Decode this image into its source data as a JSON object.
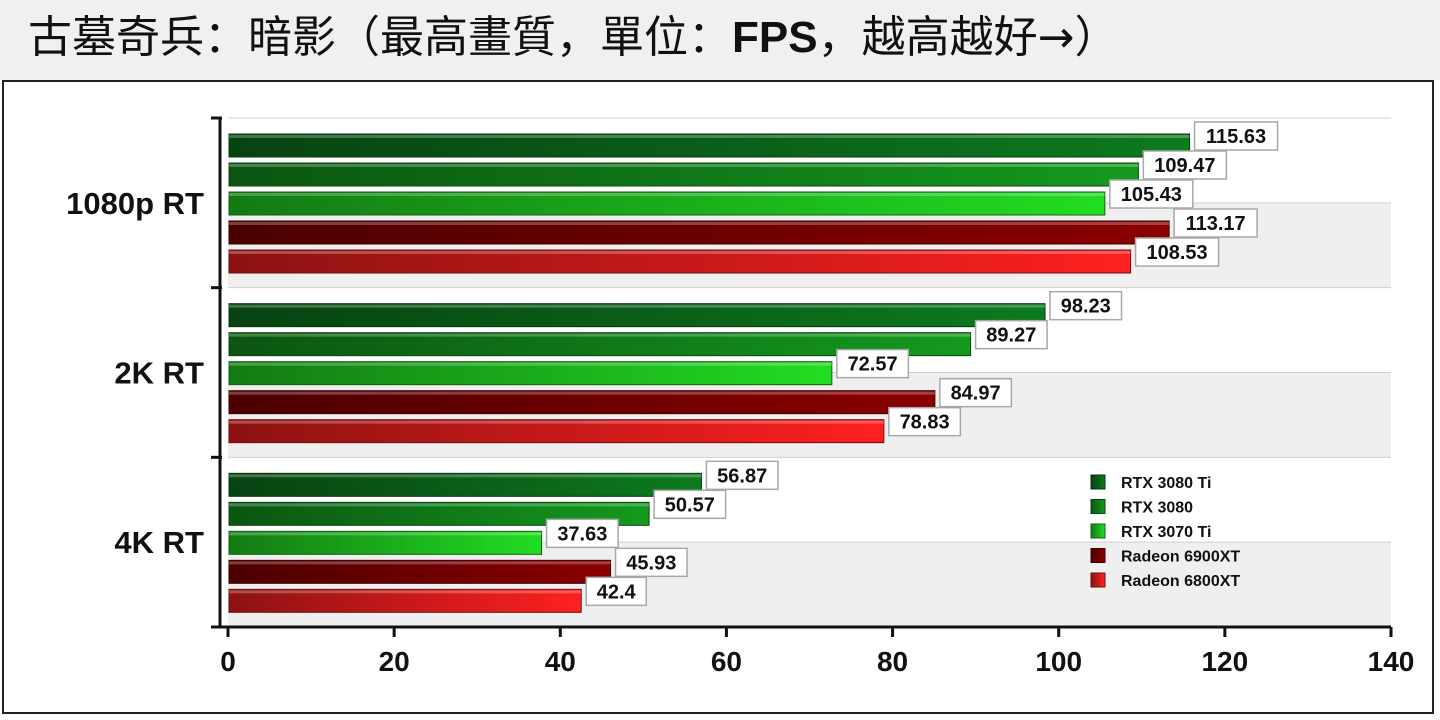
{
  "title_prefix": "古墓奇兵：暗影（最高畫質，單位：",
  "title_bold": "FPS",
  "title_suffix": "，越高越好→）",
  "chart_data": {
    "type": "bar",
    "orientation": "horizontal",
    "title": "古墓奇兵：暗影（最高畫質，單位：FPS，越高越好→）",
    "categories": [
      "1080p RT",
      "2K RT",
      "4K RT"
    ],
    "series": [
      {
        "name": "RTX 3080 Ti",
        "color": "#0d7a1f",
        "values": [
          115.63,
          98.23,
          56.87
        ]
      },
      {
        "name": "RTX 3080",
        "color": "#149a1e",
        "values": [
          109.47,
          89.27,
          50.57
        ]
      },
      {
        "name": "RTX 3070 Ti",
        "color": "#22dd22",
        "values": [
          105.43,
          72.57,
          37.63
        ]
      },
      {
        "name": "Radeon 6900XT",
        "color": "#8b0000",
        "values": [
          113.17,
          84.97,
          45.93
        ]
      },
      {
        "name": "Radeon 6800XT",
        "color": "#ff2020",
        "values": [
          108.53,
          78.83,
          42.4
        ]
      }
    ],
    "xlim": [
      0,
      140
    ],
    "xticks": [
      0,
      20,
      40,
      60,
      80,
      100,
      120,
      140
    ],
    "legend_position": "bottom-right",
    "xlabel": "",
    "ylabel": ""
  }
}
